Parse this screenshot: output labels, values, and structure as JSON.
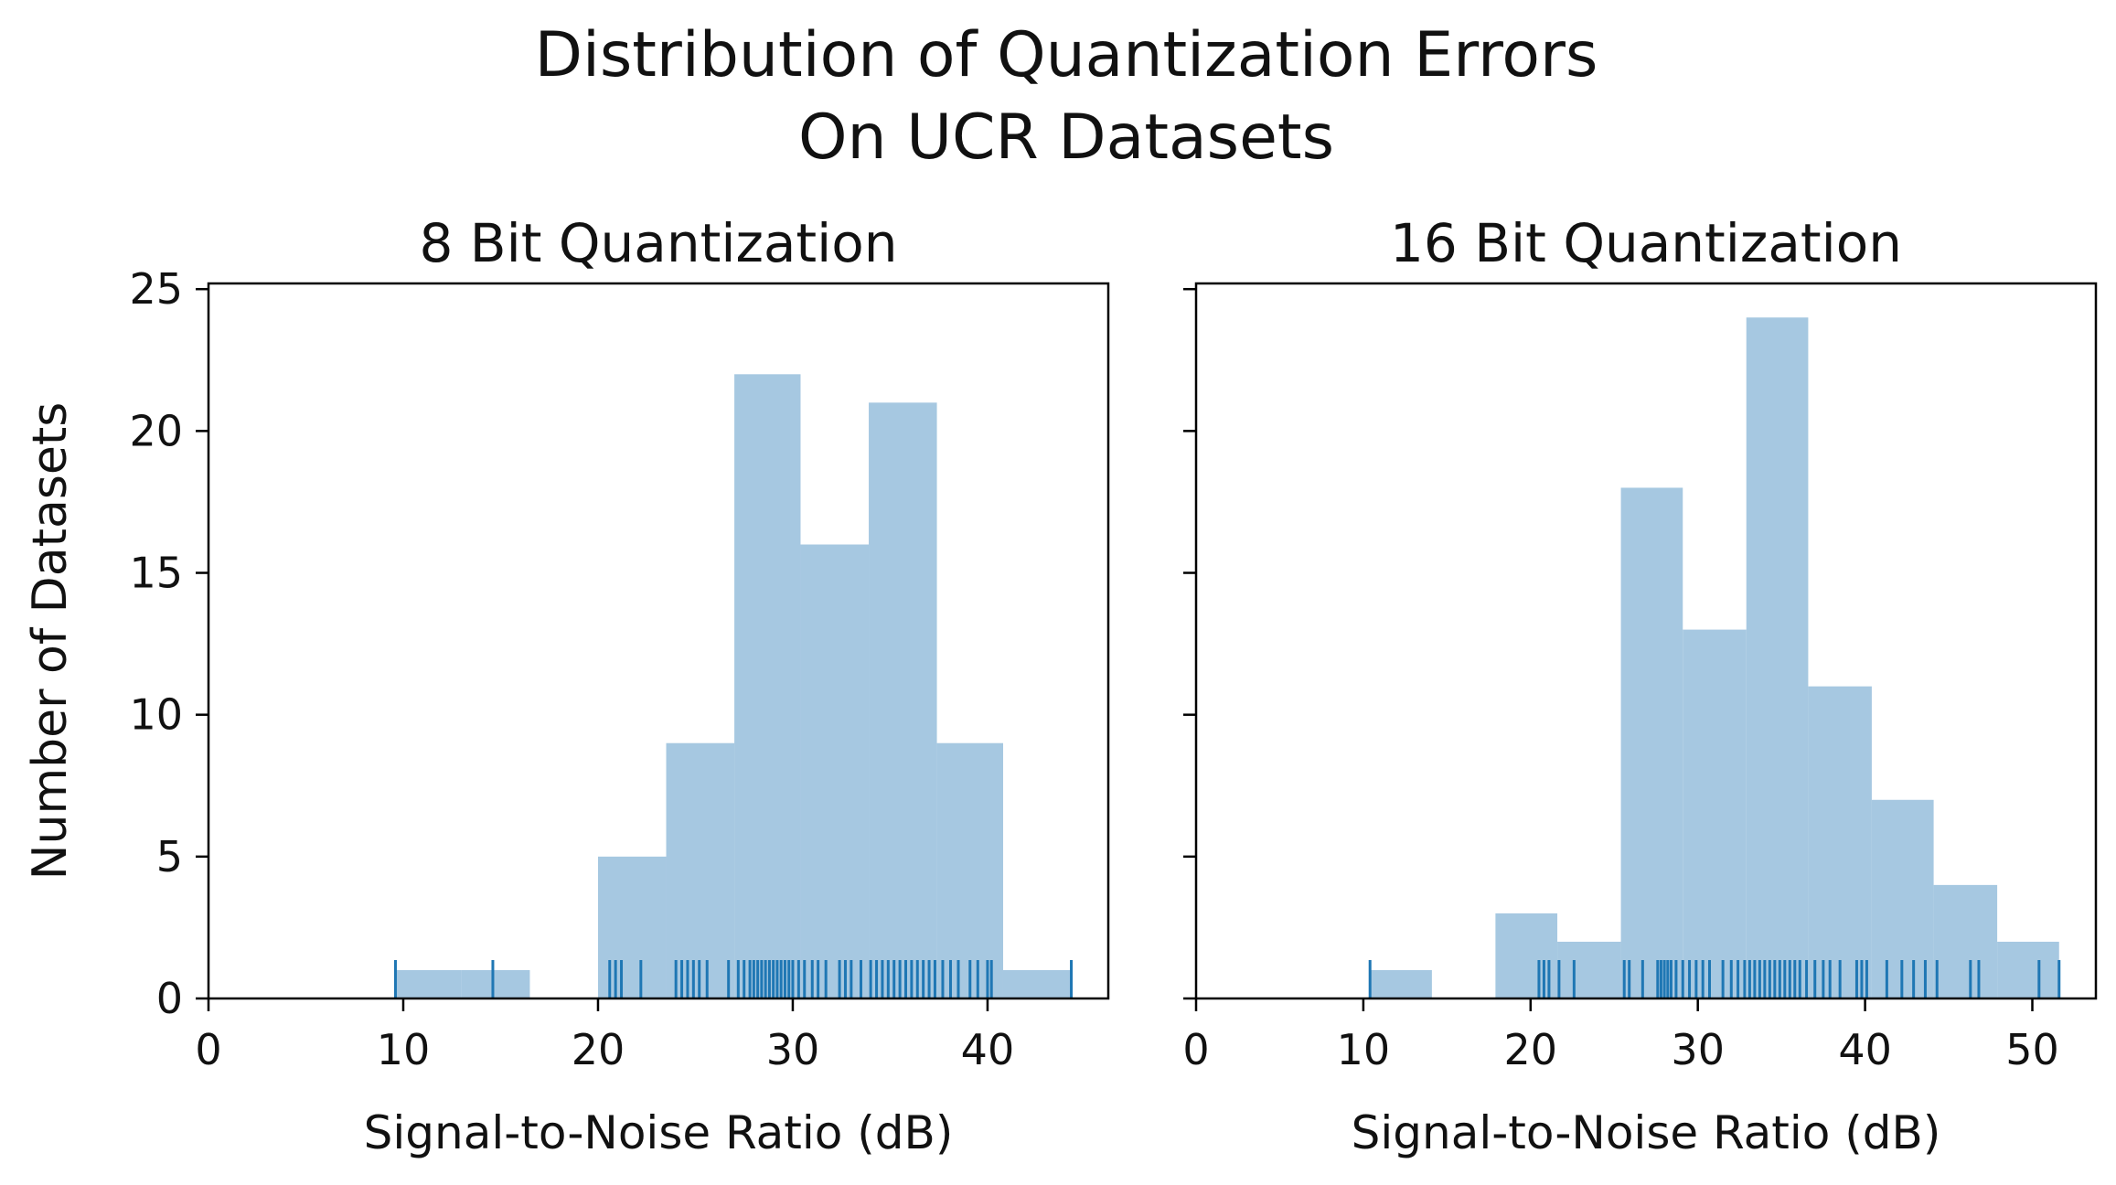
{
  "figure_title_line1": "Distribution of Quantization Errors",
  "figure_title_line2": "On UCR Datasets",
  "colors": {
    "bar": "#a6c8e1",
    "rug": "#1f77b4",
    "axis": "#000000"
  },
  "chart_data": [
    {
      "type": "bar",
      "title": "8 Bit Quantization",
      "xlabel": "Signal-to-Noise Ratio (dB)",
      "ylabel": "Number of Datasets",
      "xlim": [
        0,
        46.2
      ],
      "ylim": [
        0,
        25.2
      ],
      "xticks": [
        0,
        10,
        20,
        30,
        40
      ],
      "yticks": [
        0,
        5,
        10,
        15,
        20,
        25
      ],
      "bins": [
        {
          "x0": 9.6,
          "x1": 13.0,
          "count": 1
        },
        {
          "x0": 13.0,
          "x1": 16.5,
          "count": 1
        },
        {
          "x0": 20.0,
          "x1": 23.5,
          "count": 5
        },
        {
          "x0": 23.5,
          "x1": 27.0,
          "count": 9
        },
        {
          "x0": 27.0,
          "x1": 30.4,
          "count": 22
        },
        {
          "x0": 30.4,
          "x1": 33.9,
          "count": 16
        },
        {
          "x0": 33.9,
          "x1": 37.4,
          "count": 21
        },
        {
          "x0": 37.4,
          "x1": 40.8,
          "count": 9
        },
        {
          "x0": 40.8,
          "x1": 44.3,
          "count": 1
        }
      ],
      "rug": [
        9.6,
        14.6,
        20.6,
        20.9,
        21.2,
        22.2,
        24.0,
        24.3,
        24.6,
        24.9,
        25.2,
        25.6,
        26.7,
        27.2,
        27.5,
        27.8,
        28.0,
        28.2,
        28.4,
        28.6,
        28.8,
        29.0,
        29.2,
        29.4,
        29.6,
        29.8,
        30.0,
        30.3,
        30.6,
        31.0,
        31.3,
        31.7,
        32.4,
        32.7,
        33.0,
        33.5,
        34.0,
        34.3,
        34.6,
        34.9,
        35.2,
        35.5,
        35.8,
        36.1,
        36.4,
        36.7,
        37.0,
        37.3,
        37.7,
        38.1,
        38.5,
        39.1,
        39.5,
        40.0,
        40.2,
        44.3
      ]
    },
    {
      "type": "bar",
      "title": "16 Bit Quantization",
      "xlabel": "Signal-to-Noise Ratio (dB)",
      "ylabel": "",
      "xlim": [
        0,
        53.8
      ],
      "ylim": [
        0,
        25.2
      ],
      "xticks": [
        0,
        10,
        20,
        30,
        40,
        50
      ],
      "yticks": [
        0,
        5,
        10,
        15,
        20,
        25
      ],
      "bins": [
        {
          "x0": 10.4,
          "x1": 14.1,
          "count": 1
        },
        {
          "x0": 17.9,
          "x1": 21.6,
          "count": 3
        },
        {
          "x0": 21.6,
          "x1": 25.4,
          "count": 2
        },
        {
          "x0": 25.4,
          "x1": 29.1,
          "count": 18
        },
        {
          "x0": 29.1,
          "x1": 32.9,
          "count": 13
        },
        {
          "x0": 32.9,
          "x1": 36.6,
          "count": 24
        },
        {
          "x0": 36.6,
          "x1": 40.4,
          "count": 11
        },
        {
          "x0": 40.4,
          "x1": 44.1,
          "count": 7
        },
        {
          "x0": 44.1,
          "x1": 47.9,
          "count": 4
        },
        {
          "x0": 47.9,
          "x1": 51.6,
          "count": 2
        }
      ],
      "rug": [
        10.4,
        20.5,
        20.8,
        21.1,
        21.7,
        22.6,
        25.6,
        25.9,
        26.7,
        27.6,
        27.8,
        28.0,
        28.2,
        28.4,
        28.7,
        29.1,
        29.5,
        29.9,
        30.3,
        30.7,
        31.5,
        32.0,
        32.4,
        32.8,
        33.1,
        33.4,
        33.7,
        34.0,
        34.3,
        34.6,
        34.9,
        35.2,
        35.5,
        35.8,
        36.1,
        36.5,
        37.0,
        37.5,
        37.9,
        38.5,
        39.5,
        39.8,
        40.1,
        41.3,
        42.2,
        42.9,
        43.6,
        44.3,
        46.3,
        46.8,
        50.4,
        51.6
      ]
    }
  ]
}
